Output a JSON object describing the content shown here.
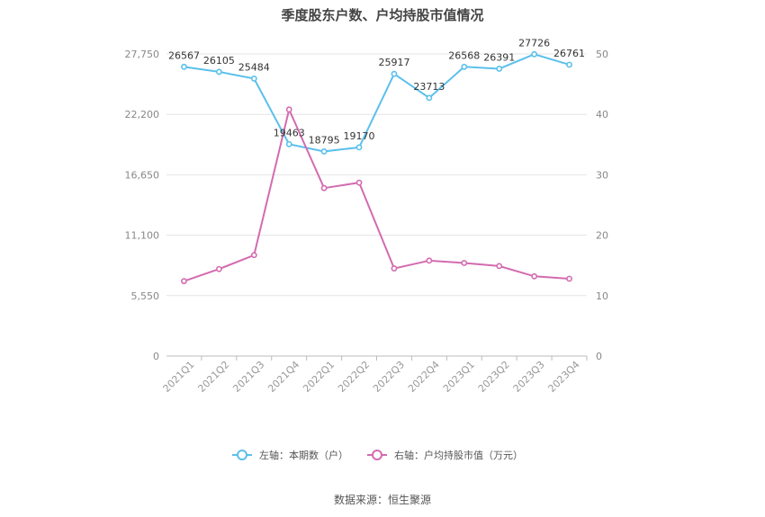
{
  "title": "季度股东户数、户均持股市值情况",
  "source": "数据来源：恒生聚源",
  "colors": {
    "left": "#5bc0eb",
    "right": "#d36bb0",
    "grid": "#e6e6e6",
    "axis": "#bbbbbb"
  },
  "chart_data": {
    "type": "line",
    "categories": [
      "2021Q1",
      "2021Q2",
      "2021Q3",
      "2021Q4",
      "2022Q1",
      "2022Q2",
      "2022Q3",
      "2022Q4",
      "2023Q1",
      "2023Q2",
      "2023Q3",
      "2023Q4"
    ],
    "series": [
      {
        "name": "左轴：本期数（户）",
        "axis": "left",
        "values": [
          26567,
          26105,
          25484,
          19463,
          18795,
          19170,
          25917,
          23713,
          26568,
          26391,
          27726,
          26761
        ]
      },
      {
        "name": "右轴：户均持股市值（万元）",
        "axis": "right",
        "values": [
          12.4,
          14.4,
          16.7,
          40.8,
          27.8,
          28.7,
          14.5,
          15.8,
          15.4,
          14.9,
          13.2,
          12.8
        ]
      }
    ],
    "left_axis": {
      "min": 0,
      "max": 27750,
      "ticks": [
        "0",
        "5,550",
        "11,100",
        "16,650",
        "22,200",
        "27,750"
      ],
      "tick_values": [
        0,
        5550,
        11100,
        16650,
        22200,
        27750
      ]
    },
    "right_axis": {
      "min": 0,
      "max": 50,
      "ticks": [
        "0",
        "10",
        "20",
        "30",
        "40",
        "50"
      ],
      "tick_values": [
        0,
        10,
        20,
        30,
        40,
        50
      ]
    },
    "data_labels": [
      "26567",
      "26105",
      "25484",
      "19463",
      "18795",
      "19170",
      "25917",
      "23713",
      "26568",
      "26391",
      "27726",
      "26761"
    ],
    "legend_position": "bottom-center",
    "grid": true
  }
}
